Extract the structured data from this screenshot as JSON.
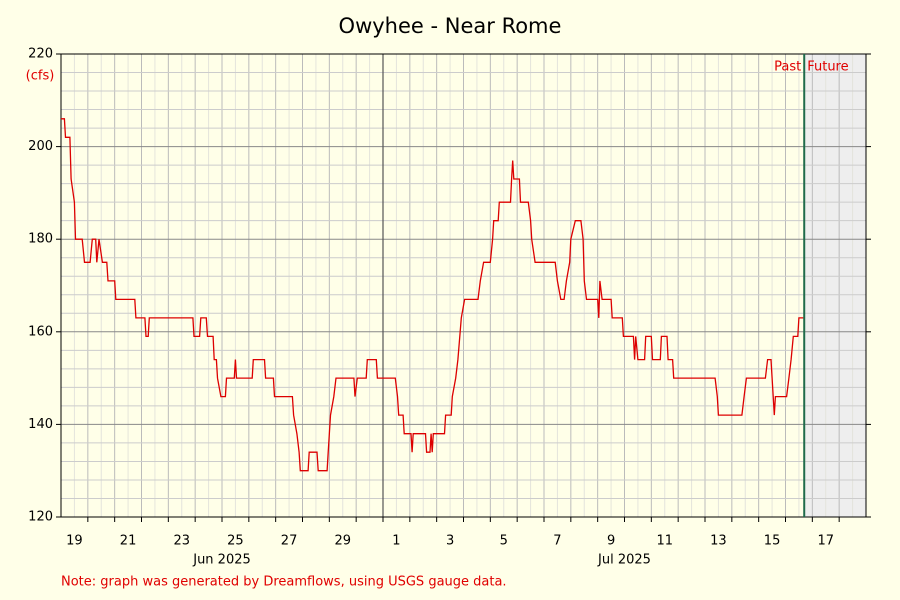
{
  "chart_data": {
    "type": "line",
    "title": "Owyhee - Near Rome",
    "y_unit": "(cfs)",
    "note": "Note: graph was generated by Dreamflows, using USGS gauge data.",
    "past_label": "Past",
    "future_label": "Future",
    "now": "2025-07-16T16:45",
    "month_boundary": "2025-07-01",
    "month_labels": [
      {
        "value": "2025-06-25",
        "label": "Jun 2025"
      },
      {
        "value": "2025-07-10",
        "label": "Jul 2025"
      }
    ],
    "xlim": [
      "2025-06-19T00:00",
      "2025-07-19T00:00"
    ],
    "xticks": [
      {
        "value": "2025-06-19",
        "label": "19"
      },
      {
        "value": "2025-06-21",
        "label": "21"
      },
      {
        "value": "2025-06-23",
        "label": "23"
      },
      {
        "value": "2025-06-25",
        "label": "25"
      },
      {
        "value": "2025-06-27",
        "label": "27"
      },
      {
        "value": "2025-06-29",
        "label": "29"
      },
      {
        "value": "2025-07-01",
        "label": "1"
      },
      {
        "value": "2025-07-03",
        "label": "3"
      },
      {
        "value": "2025-07-05",
        "label": "5"
      },
      {
        "value": "2025-07-07",
        "label": "7"
      },
      {
        "value": "2025-07-09",
        "label": "9"
      },
      {
        "value": "2025-07-11",
        "label": "11"
      },
      {
        "value": "2025-07-13",
        "label": "13"
      },
      {
        "value": "2025-07-15",
        "label": "15"
      },
      {
        "value": "2025-07-17",
        "label": "17"
      }
    ],
    "ylim": [
      120,
      220
    ],
    "yticks": [
      120,
      140,
      160,
      180,
      200,
      220
    ],
    "minor_yticks": [
      124,
      128,
      132,
      136,
      144,
      148,
      152,
      156,
      164,
      168,
      172,
      176,
      184,
      188,
      192,
      196,
      204,
      208,
      212,
      216
    ],
    "grid": true,
    "x": [
      "2025-06-19T00:00",
      "2025-06-19T03:00",
      "2025-06-19T04:00",
      "2025-06-19T08:00",
      "2025-06-19T09:00",
      "2025-06-19T12:00",
      "2025-06-19T13:00",
      "2025-06-19T19:00",
      "2025-06-19T21:00",
      "2025-06-20T02:00",
      "2025-06-20T04:00",
      "2025-06-20T07:00",
      "2025-06-20T08:00",
      "2025-06-20T10:00",
      "2025-06-20T13:00",
      "2025-06-20T17:00",
      "2025-06-20T18:00",
      "2025-06-21T00:00",
      "2025-06-21T01:00",
      "2025-06-21T18:00",
      "2025-06-21T19:00",
      "2025-06-22T03:00",
      "2025-06-22T04:00",
      "2025-06-22T06:00",
      "2025-06-22T07:00",
      "2025-06-23T22:00",
      "2025-06-23T23:00",
      "2025-06-24T04:00",
      "2025-06-24T05:00",
      "2025-06-24T10:00",
      "2025-06-24T11:00",
      "2025-06-24T16:00",
      "2025-06-24T17:00",
      "2025-06-24T19:00",
      "2025-06-24T20:00",
      "2025-06-24T23:00",
      "2025-06-25T03:00",
      "2025-06-25T04:00",
      "2025-06-25T11:00",
      "2025-06-25T12:00",
      "2025-06-25T13:00",
      "2025-06-26T03:00",
      "2025-06-26T04:00",
      "2025-06-26T14:00",
      "2025-06-26T15:00",
      "2025-06-26T22:00",
      "2025-06-26T23:00",
      "2025-06-27T15:00",
      "2025-06-27T16:00",
      "2025-06-27T19:00",
      "2025-06-27T21:00",
      "2025-06-27T22:00",
      "2025-06-28T05:00",
      "2025-06-28T06:00",
      "2025-06-28T13:00",
      "2025-06-28T14:00",
      "2025-06-28T22:00",
      "2025-06-28T23:00",
      "2025-06-29T01:00",
      "2025-06-29T04:00",
      "2025-06-29T06:00",
      "2025-06-29T22:00",
      "2025-06-29T23:00",
      "2025-06-30T01:00",
      "2025-06-30T09:00",
      "2025-06-30T10:00",
      "2025-06-30T18:00",
      "2025-06-30T19:00",
      "2025-07-01T11:00",
      "2025-07-01T13:00",
      "2025-07-01T14:00",
      "2025-07-01T18:00",
      "2025-07-01T19:00",
      "2025-07-02T01:00",
      "2025-07-02T02:00",
      "2025-07-02T03:00",
      "2025-07-02T14:00",
      "2025-07-02T15:00",
      "2025-07-02T18:00",
      "2025-07-02T19:00",
      "2025-07-02T20:00",
      "2025-07-02T21:00",
      "2025-07-03T07:00",
      "2025-07-03T08:00",
      "2025-07-03T13:00",
      "2025-07-03T14:00",
      "2025-07-03T17:00",
      "2025-07-03T19:00",
      "2025-07-03T22:00",
      "2025-07-04T01:00",
      "2025-07-04T13:00",
      "2025-07-04T15:00",
      "2025-07-04T18:00",
      "2025-07-05T00:00",
      "2025-07-05T02:00",
      "2025-07-05T03:00",
      "2025-07-05T07:00",
      "2025-07-05T08:00",
      "2025-07-05T18:00",
      "2025-07-05T19:00",
      "2025-07-05T20:00",
      "2025-07-05T21:00",
      "2025-07-06T02:00",
      "2025-07-06T03:00",
      "2025-07-06T10:00",
      "2025-07-06T12:00",
      "2025-07-06T13:00",
      "2025-07-06T16:00",
      "2025-07-07T10:00",
      "2025-07-07T12:00",
      "2025-07-07T15:00",
      "2025-07-07T18:00",
      "2025-07-07T20:00",
      "2025-07-07T23:00",
      "2025-07-08T00:00",
      "2025-07-08T04:00",
      "2025-07-08T09:00",
      "2025-07-08T11:00",
      "2025-07-08T12:00",
      "2025-07-08T14:00",
      "2025-07-09T00:00",
      "2025-07-09T01:00",
      "2025-07-09T02:00",
      "2025-07-09T04:00",
      "2025-07-09T12:00",
      "2025-07-09T13:00",
      "2025-07-09T22:00",
      "2025-07-09T23:00",
      "2025-07-10T08:00",
      "2025-07-10T09:00",
      "2025-07-10T10:00",
      "2025-07-10T12:00",
      "2025-07-10T18:00",
      "2025-07-10T19:00",
      "2025-07-11T00:00",
      "2025-07-11T01:00",
      "2025-07-11T08:00",
      "2025-07-11T09:00",
      "2025-07-11T14:00",
      "2025-07-11T15:00",
      "2025-07-11T19:00",
      "2025-07-11T20:00",
      "2025-07-13T09:00",
      "2025-07-13T11:00",
      "2025-07-13T12:00",
      "2025-07-14T09:00",
      "2025-07-14T11:00",
      "2025-07-14T13:00",
      "2025-07-15T06:00",
      "2025-07-15T08:00",
      "2025-07-15T11:00",
      "2025-07-15T13:00",
      "2025-07-15T14:00",
      "2025-07-15T15:00",
      "2025-07-16T01:00",
      "2025-07-16T03:00",
      "2025-07-16T05:00",
      "2025-07-16T07:00",
      "2025-07-16T11:00",
      "2025-07-16T12:00",
      "2025-07-16T16:00"
    ],
    "series": [
      {
        "name": "Flow",
        "color": "#dd0000",
        "values": [
          206,
          206,
          202,
          202,
          193,
          188,
          180,
          180,
          175,
          175,
          180,
          180,
          175,
          180,
          175,
          175,
          171,
          171,
          167,
          167,
          163,
          163,
          159,
          159,
          163,
          163,
          159,
          159,
          163,
          163,
          159,
          159,
          154,
          154,
          150,
          146,
          146,
          150,
          150,
          154,
          150,
          150,
          154,
          154,
          150,
          150,
          146,
          146,
          142,
          138,
          134,
          130,
          130,
          134,
          134,
          130,
          130,
          134,
          142,
          146,
          150,
          150,
          146,
          150,
          150,
          154,
          154,
          150,
          150,
          146,
          142,
          142,
          138,
          138,
          134,
          138,
          138,
          134,
          134,
          138,
          134,
          138,
          138,
          142,
          142,
          146,
          150,
          154,
          163,
          167,
          167,
          171,
          175,
          175,
          180,
          184,
          184,
          188,
          188,
          193,
          197,
          193,
          193,
          188,
          188,
          184,
          180,
          175,
          175,
          171,
          167,
          167,
          171,
          175,
          180,
          184,
          184,
          180,
          171,
          167,
          167,
          163,
          171,
          167,
          167,
          163,
          163,
          159,
          159,
          154,
          159,
          154,
          154,
          159,
          159,
          154,
          154,
          159,
          159,
          154,
          154,
          150,
          150,
          146,
          142,
          142,
          146,
          150,
          150,
          154,
          154,
          146,
          142,
          146,
          146,
          150,
          154,
          159,
          159,
          163,
          163
        ]
      }
    ]
  }
}
